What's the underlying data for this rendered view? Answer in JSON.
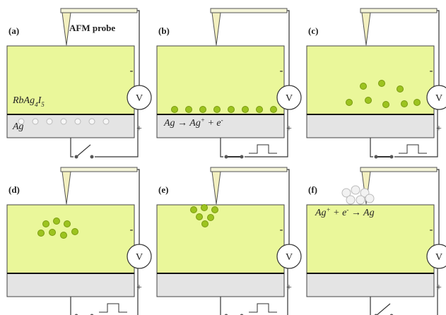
{
  "panels": [
    {
      "label": "(a)",
      "probe_label": "AFM probe",
      "formula": [
        "RbAg",
        "4",
        "I",
        "5"
      ],
      "electrode": "Ag",
      "minus": "-",
      "plus": "+",
      "meter": "V"
    },
    {
      "label": "(b)",
      "reaction": [
        "Ag → Ag",
        "+",
        " + e",
        "-"
      ],
      "minus": "-",
      "plus": "+",
      "meter": "V"
    },
    {
      "label": "(c)",
      "minus": "-",
      "plus": "+",
      "meter": "V"
    },
    {
      "label": "(d)",
      "minus": "-",
      "plus": "+",
      "meter": "V"
    },
    {
      "label": "(e)",
      "minus": "-",
      "plus": "+",
      "meter": "V"
    },
    {
      "label": "(f)",
      "reaction": [
        "Ag",
        "+",
        " + e",
        "-",
        " → Ag"
      ],
      "minus": "-",
      "plus": "+",
      "meter": "V"
    }
  ]
}
